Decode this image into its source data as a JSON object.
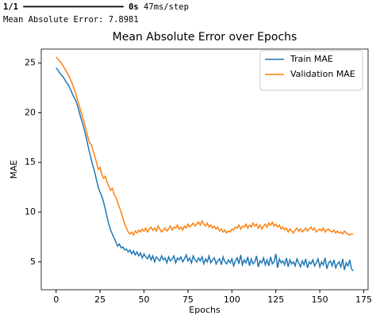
{
  "console": {
    "progress": {
      "step": "1/1",
      "bar": "━━━━━━━━━━━━━━━━━━━━",
      "time": "0s",
      "rate": "47ms/step"
    },
    "result": "Mean Absolute Error: 7.8981"
  },
  "chart_data": {
    "type": "line",
    "title": "Mean Absolute Error over Epochs",
    "x_label": "Epochs",
    "y_label": "MAE",
    "xlim": [
      -8.45,
      177.45
    ],
    "xticks": [
      0,
      25,
      50,
      75,
      100,
      125,
      150,
      175
    ],
    "ylim": [
      2.2,
      26.4
    ],
    "yticks": [
      5,
      10,
      15,
      20,
      25
    ],
    "grid": false,
    "legend": "upper right",
    "x": [
      0,
      1,
      2,
      3,
      4,
      5,
      6,
      7,
      8,
      9,
      10,
      11,
      12,
      13,
      14,
      15,
      16,
      17,
      18,
      19,
      20,
      21,
      22,
      23,
      24,
      25,
      26,
      27,
      28,
      29,
      30,
      31,
      32,
      33,
      34,
      35,
      36,
      37,
      38,
      39,
      40,
      41,
      42,
      43,
      44,
      45,
      46,
      47,
      48,
      49,
      50,
      51,
      52,
      53,
      54,
      55,
      56,
      57,
      58,
      59,
      60,
      61,
      62,
      63,
      64,
      65,
      66,
      67,
      68,
      69,
      70,
      71,
      72,
      73,
      74,
      75,
      76,
      77,
      78,
      79,
      80,
      81,
      82,
      83,
      84,
      85,
      86,
      87,
      88,
      89,
      90,
      91,
      92,
      93,
      94,
      95,
      96,
      97,
      98,
      99,
      100,
      101,
      102,
      103,
      104,
      105,
      106,
      107,
      108,
      109,
      110,
      111,
      112,
      113,
      114,
      115,
      116,
      117,
      118,
      119,
      120,
      121,
      122,
      123,
      124,
      125,
      126,
      127,
      128,
      129,
      130,
      131,
      132,
      133,
      134,
      135,
      136,
      137,
      138,
      139,
      140,
      141,
      142,
      143,
      144,
      145,
      146,
      147,
      148,
      149,
      150,
      151,
      152,
      153,
      154,
      155,
      156,
      157,
      158,
      159,
      160,
      161,
      162,
      163,
      164,
      165,
      166,
      167,
      168,
      169
    ],
    "series": [
      {
        "name": "Train MAE",
        "color": "#1f77b4",
        "values": [
          24.5,
          24.3,
          24.0,
          23.8,
          23.6,
          23.3,
          23.0,
          22.8,
          22.4,
          22.0,
          21.6,
          21.3,
          20.8,
          20.2,
          19.5,
          19.0,
          18.3,
          17.6,
          16.8,
          16.0,
          15.3,
          14.6,
          14.0,
          13.2,
          12.5,
          12.0,
          11.6,
          11.0,
          10.3,
          9.5,
          8.8,
          8.2,
          7.8,
          7.4,
          7.0,
          6.6,
          6.8,
          6.4,
          6.5,
          6.2,
          6.3,
          6.0,
          6.2,
          5.8,
          6.1,
          5.7,
          6.0,
          5.6,
          5.9,
          5.4,
          5.8,
          5.5,
          5.3,
          5.7,
          5.2,
          5.6,
          5.0,
          5.5,
          5.3,
          5.1,
          5.6,
          5.2,
          5.4,
          4.9,
          5.5,
          5.1,
          5.3,
          5.6,
          4.9,
          5.4,
          5.2,
          5.5,
          5.0,
          5.3,
          5.7,
          5.1,
          5.4,
          4.9,
          5.6,
          5.2,
          5.0,
          5.4,
          5.1,
          5.5,
          4.8,
          5.3,
          5.0,
          5.6,
          4.9,
          5.2,
          5.4,
          4.8,
          5.1,
          5.3,
          4.7,
          5.5,
          5.0,
          4.8,
          5.2,
          4.9,
          5.3,
          4.6,
          5.1,
          5.4,
          4.8,
          5.7,
          4.7,
          5.2,
          4.9,
          5.5,
          4.6,
          5.3,
          4.8,
          5.0,
          5.6,
          4.5,
          5.1,
          4.9,
          5.4,
          4.7,
          5.2,
          4.6,
          5.5,
          4.8,
          5.0,
          5.8,
          4.4,
          5.3,
          4.9,
          5.1,
          4.7,
          5.4,
          4.5,
          5.2,
          4.8,
          5.0,
          4.6,
          5.3,
          4.9,
          4.5,
          5.1,
          4.7,
          5.3,
          4.4,
          5.0,
          4.8,
          5.2,
          4.6,
          4.9,
          5.3,
          4.5,
          5.0,
          4.7,
          5.4,
          4.3,
          4.9,
          5.1,
          4.6,
          5.2,
          4.4,
          4.8,
          5.0,
          4.5,
          5.3,
          4.2,
          4.9,
          4.6,
          5.2,
          4.3,
          4.1
        ]
      },
      {
        "name": "Validation MAE",
        "color": "#ff7f0e",
        "values": [
          25.6,
          25.4,
          25.2,
          25.0,
          24.7,
          24.4,
          24.1,
          23.8,
          23.4,
          23.0,
          22.5,
          22.0,
          21.4,
          20.8,
          20.2,
          19.6,
          19.0,
          18.3,
          17.6,
          17.0,
          16.8,
          16.2,
          15.6,
          15.0,
          14.3,
          14.5,
          13.8,
          13.4,
          13.6,
          13.0,
          12.6,
          12.2,
          12.4,
          11.8,
          11.5,
          11.0,
          10.5,
          10.0,
          9.4,
          8.8,
          8.4,
          8.0,
          7.8,
          8.0,
          7.7,
          8.1,
          7.9,
          8.2,
          8.0,
          8.3,
          8.1,
          8.4,
          8.0,
          8.3,
          8.5,
          8.2,
          8.4,
          8.1,
          8.6,
          8.3,
          8.0,
          8.2,
          8.4,
          8.1,
          8.3,
          8.6,
          8.2,
          8.5,
          8.4,
          8.7,
          8.3,
          8.5,
          8.2,
          8.6,
          8.4,
          8.8,
          8.5,
          8.7,
          8.9,
          8.6,
          8.8,
          9.0,
          8.7,
          9.1,
          8.8,
          8.6,
          8.9,
          8.5,
          8.7,
          8.4,
          8.6,
          8.3,
          8.5,
          8.1,
          8.3,
          8.0,
          8.2,
          7.9,
          8.1,
          8.0,
          8.3,
          8.2,
          8.5,
          8.4,
          8.7,
          8.3,
          8.6,
          8.5,
          8.8,
          8.4,
          8.7,
          8.5,
          8.9,
          8.6,
          8.8,
          8.4,
          8.7,
          8.3,
          8.6,
          8.8,
          8.5,
          8.9,
          8.7,
          9.0,
          8.6,
          8.8,
          8.5,
          8.7,
          8.3,
          8.5,
          8.2,
          8.4,
          8.0,
          8.3,
          8.1,
          7.9,
          8.2,
          8.4,
          8.1,
          8.3,
          8.0,
          8.2,
          8.4,
          8.1,
          8.3,
          8.5,
          8.2,
          8.4,
          8.0,
          8.2,
          8.3,
          8.1,
          8.4,
          8.0,
          8.2,
          8.3,
          8.1,
          8.0,
          8.2,
          7.9,
          8.1,
          7.9,
          8.0,
          7.8,
          8.1,
          7.9,
          7.8,
          7.7,
          7.8,
          7.8
        ]
      }
    ]
  }
}
